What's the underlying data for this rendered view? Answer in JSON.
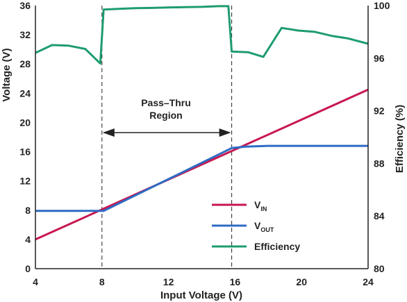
{
  "chart_data": {
    "type": "line",
    "xlabel": "Input Voltage (V)",
    "ylabel": "Voltage (V)",
    "y2label": "Efficiency (%)",
    "xlim": [
      4,
      24
    ],
    "ylim": [
      0,
      36
    ],
    "y2lim": [
      80,
      100
    ],
    "xticks": [
      "4",
      "8",
      "12",
      "16",
      "20",
      "24"
    ],
    "yticks": [
      "0",
      "4",
      "8",
      "12",
      "16",
      "20",
      "24",
      "28",
      "32",
      "36"
    ],
    "y2ticks": [
      "80",
      "84",
      "88",
      "92",
      "96",
      "100"
    ],
    "grid": false,
    "legend_position": "bottom-center",
    "annotation": {
      "line1": "Pass–Thru",
      "line2": "Region",
      "x_range": [
        8,
        15.8
      ]
    },
    "series": [
      {
        "name_main": "V",
        "name_sub": "IN",
        "axis": "left",
        "color": "#c8174f",
        "x": [
          4,
          24
        ],
        "y": [
          4,
          24.5
        ]
      },
      {
        "name_main": "V",
        "name_sub": "OUT",
        "axis": "left",
        "color": "#2e6bc4",
        "x": [
          4,
          8,
          8.1,
          15.8,
          16.6,
          18,
          20,
          22,
          24
        ],
        "y": [
          7.9,
          7.9,
          7.9,
          16.5,
          16.7,
          16.8,
          16.8,
          16.8,
          16.8
        ]
      },
      {
        "name_main": "Efficiency",
        "name_sub": "",
        "axis": "right",
        "color": "#1e9c6e",
        "x": [
          4,
          5,
          6,
          7,
          7.9,
          8.1,
          9,
          10,
          11,
          12,
          13,
          14,
          15,
          15.6,
          15.8,
          16.8,
          17.7,
          18.8,
          19.8,
          20.8,
          21.8,
          22.8,
          24
        ],
        "y": [
          96.4,
          97.0,
          96.95,
          96.7,
          95.6,
          99.7,
          99.75,
          99.8,
          99.82,
          99.85,
          99.88,
          99.9,
          99.95,
          99.95,
          96.5,
          96.45,
          96.1,
          98.3,
          98.1,
          98.0,
          97.7,
          97.5,
          97.1
        ]
      }
    ]
  }
}
